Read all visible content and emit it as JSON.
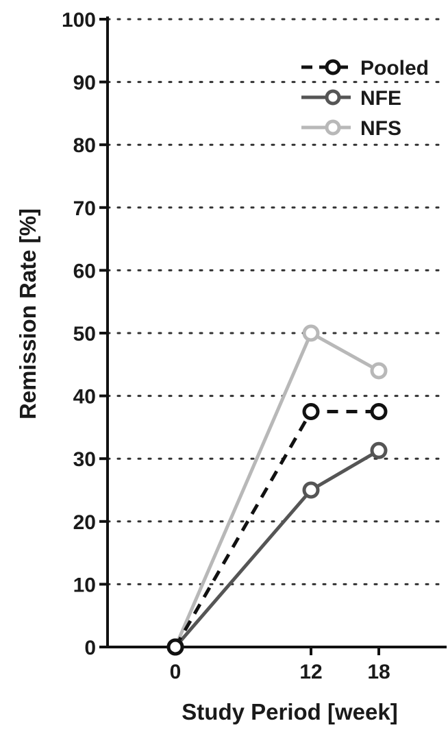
{
  "chart_data": {
    "type": "line",
    "title": "",
    "xlabel": "Study Period [week]",
    "ylabel": "Remission Rate [%]",
    "xlim": [
      -6,
      24
    ],
    "ylim": [
      0,
      100
    ],
    "x_ticks": [
      0,
      12,
      18
    ],
    "y_ticks": [
      0,
      10,
      20,
      30,
      40,
      50,
      60,
      70,
      80,
      90,
      100
    ],
    "grid": "horizontal dotted",
    "legend_position": "top-right",
    "series": [
      {
        "name": "Pooled",
        "x": [
          0,
          12,
          18
        ],
        "values": [
          0,
          37.5,
          37.5
        ],
        "color": "#111111",
        "marker_color": "#111111",
        "dash": "dashed"
      },
      {
        "name": "NFE",
        "x": [
          0,
          12,
          18
        ],
        "values": [
          0,
          25,
          31.3
        ],
        "color": "#555555",
        "marker_color": "#555555",
        "dash": "solid"
      },
      {
        "name": "NFS",
        "x": [
          0,
          12,
          18
        ],
        "values": [
          0,
          50,
          44
        ],
        "color": "#b8b8b8",
        "marker_color": "#b8b8b8",
        "dash": "solid"
      }
    ]
  }
}
